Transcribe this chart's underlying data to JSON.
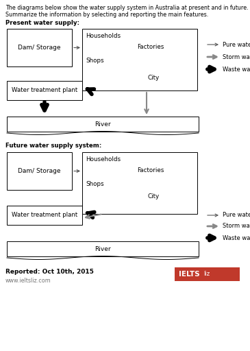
{
  "title_line1": "The diagrams below show the water supply system in Australia at present and in future.",
  "title_line2": "Summarize the information by selecting and reporting the main features.",
  "section1_title": "Present water supply:",
  "section2_title": "Future water supply system:",
  "footer_text": "Reported: Oct 10th, 2015",
  "footer_url": "www.ieltsliz.com",
  "bg_color": "#ffffff",
  "legend_thin_label": "Pure water",
  "legend_double_label": "Storm water",
  "legend_thick_label": "Waste water",
  "ielts_bg": "#c0392b",
  "ielts_text": "IELTS ",
  "ielts_text2": "liz"
}
